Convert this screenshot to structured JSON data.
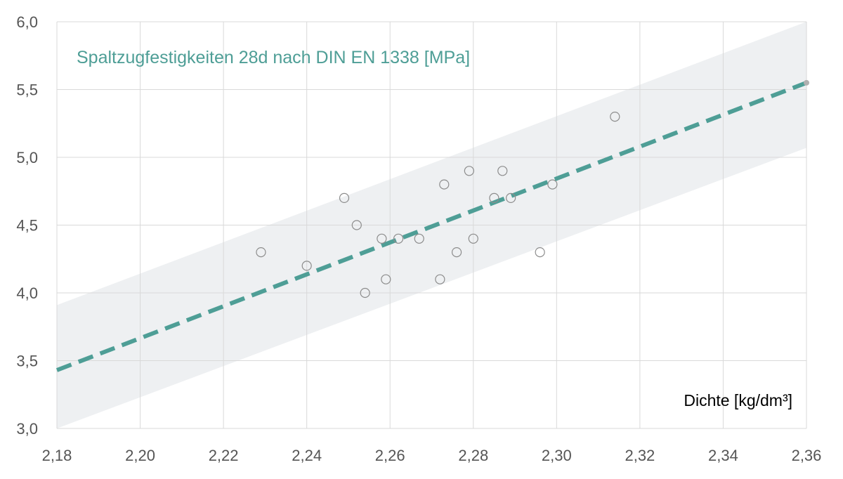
{
  "colors": {
    "title": "#4e9e96",
    "trend": "#4e9e96",
    "band": "#eef0f2",
    "grid": "#d9d9d9",
    "marker_stroke": "#8c8c8c",
    "tick_text": "#555555"
  },
  "chart_data": {
    "type": "scatter",
    "title": "Spaltzugfestigkeiten 28d nach DIN EN 1338 [MPa]",
    "xlabel": "Dichte [kg/dm³]",
    "ylabel": "",
    "xlim": [
      2.18,
      2.36
    ],
    "ylim": [
      3.0,
      6.0
    ],
    "xticks": [
      2.18,
      2.2,
      2.22,
      2.24,
      2.26,
      2.28,
      2.3,
      2.32,
      2.34,
      2.36
    ],
    "yticks": [
      3.0,
      3.5,
      4.0,
      4.5,
      5.0,
      5.5,
      6.0
    ],
    "xtick_labels": [
      "2,18",
      "2,20",
      "2,22",
      "2,24",
      "2,26",
      "2,28",
      "2,30",
      "2,32",
      "2,34",
      "2,36"
    ],
    "ytick_labels": [
      "3,0",
      "3,5",
      "4,0",
      "4,5",
      "5,0",
      "5,5",
      "6,0"
    ],
    "grid": true,
    "legend": "none",
    "points": [
      {
        "x": 2.229,
        "y": 4.3
      },
      {
        "x": 2.24,
        "y": 4.2
      },
      {
        "x": 2.249,
        "y": 4.7
      },
      {
        "x": 2.252,
        "y": 4.5
      },
      {
        "x": 2.254,
        "y": 4.0
      },
      {
        "x": 2.258,
        "y": 4.4
      },
      {
        "x": 2.259,
        "y": 4.1
      },
      {
        "x": 2.262,
        "y": 4.4
      },
      {
        "x": 2.267,
        "y": 4.4
      },
      {
        "x": 2.272,
        "y": 4.1
      },
      {
        "x": 2.273,
        "y": 4.8
      },
      {
        "x": 2.276,
        "y": 4.3
      },
      {
        "x": 2.279,
        "y": 4.9
      },
      {
        "x": 2.28,
        "y": 4.4
      },
      {
        "x": 2.285,
        "y": 4.7
      },
      {
        "x": 2.287,
        "y": 4.9
      },
      {
        "x": 2.289,
        "y": 4.7
      },
      {
        "x": 2.296,
        "y": 4.3
      },
      {
        "x": 2.299,
        "y": 4.8
      },
      {
        "x": 2.314,
        "y": 5.3
      }
    ],
    "trendline": {
      "x": [
        2.18,
        2.36
      ],
      "y": [
        3.43,
        5.55
      ]
    },
    "band": {
      "x": [
        2.18,
        2.36
      ],
      "upper": [
        3.91,
        6.0
      ],
      "lower": [
        2.95,
        5.07
      ]
    }
  }
}
